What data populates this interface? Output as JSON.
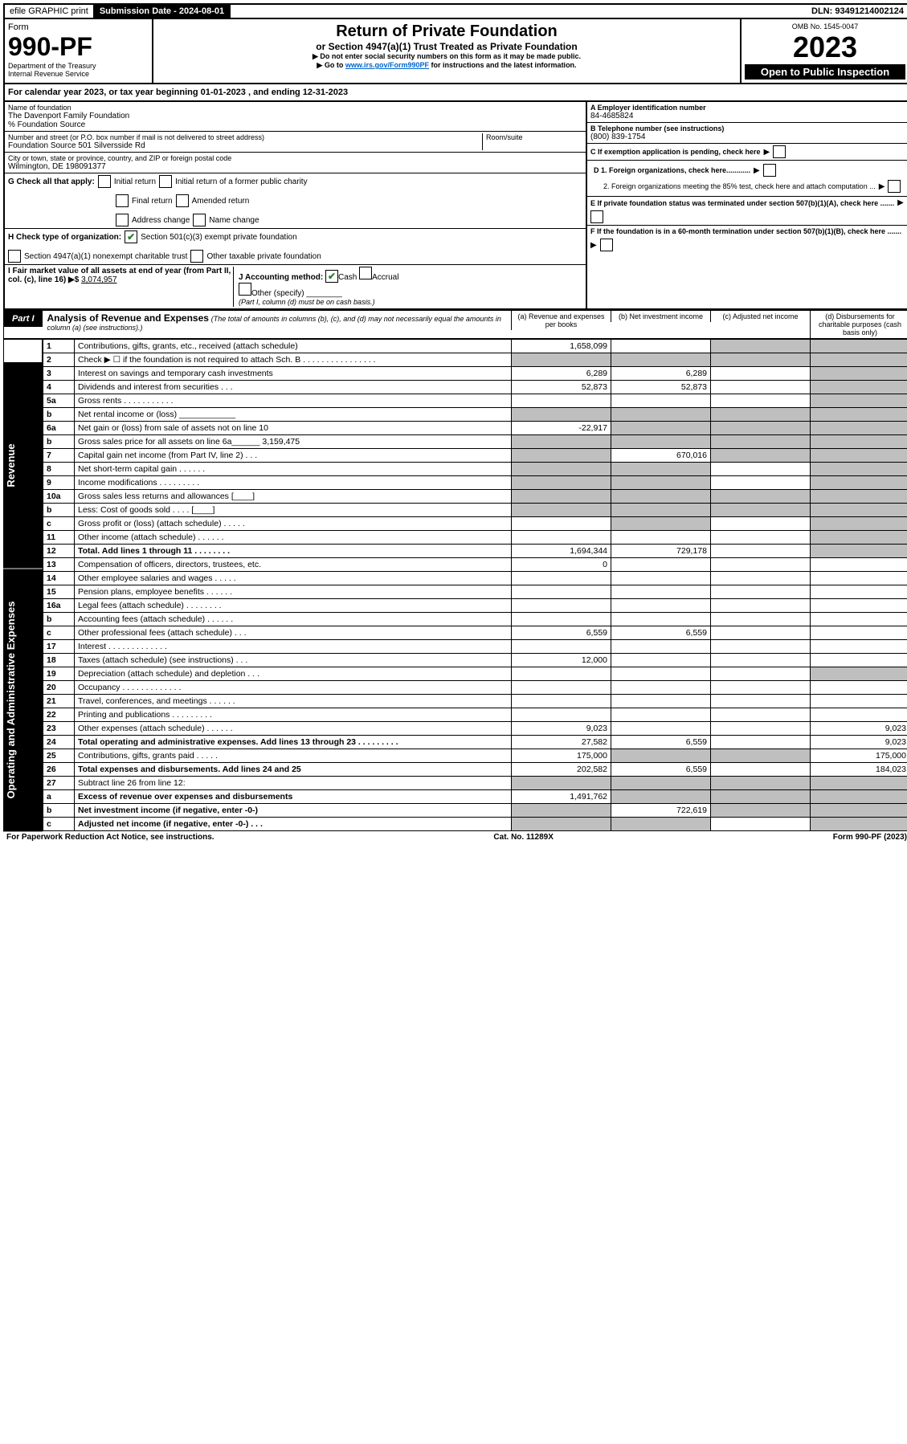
{
  "top": {
    "efile": "efile GRAPHIC print",
    "submission_label": "Submission Date - 2024-08-01",
    "dln": "DLN: 93491214002124"
  },
  "header": {
    "form_word": "Form",
    "form_num": "990-PF",
    "dept": "Department of the Treasury",
    "irs": "Internal Revenue Service",
    "title": "Return of Private Foundation",
    "subtitle": "or Section 4947(a)(1) Trust Treated as Private Foundation",
    "note1": "▶ Do not enter social security numbers on this form as it may be made public.",
    "note2_pre": "▶ Go to ",
    "note2_link": "www.irs.gov/Form990PF",
    "note2_post": " for instructions and the latest information.",
    "omb": "OMB No. 1545-0047",
    "year": "2023",
    "open": "Open to Public Inspection"
  },
  "cal_year": "For calendar year 2023, or tax year beginning 01-01-2023                         , and ending 12-31-2023",
  "entity": {
    "name_label": "Name of foundation",
    "name": "The Davenport Family Foundation",
    "care_of": "% Foundation Source",
    "addr_label": "Number and street (or P.O. box number if mail is not delivered to street address)",
    "addr": "Foundation Source 501 Silversside Rd",
    "room_label": "Room/suite",
    "city_label": "City or town, state or province, country, and ZIP or foreign postal code",
    "city": "Wilmington, DE  198091377",
    "a_label": "A Employer identification number",
    "a_val": "84-4685824",
    "b_label": "B Telephone number (see instructions)",
    "b_val": "(800) 839-1754",
    "c_label": "C If exemption application is pending, check here",
    "d1_label": "D 1. Foreign organizations, check here............",
    "d2_label": "2. Foreign organizations meeting the 85% test, check here and attach computation ...",
    "e_label": "E  If private foundation status was terminated under section 507(b)(1)(A), check here .......",
    "f_label": "F  If the foundation is in a 60-month termination under section 507(b)(1)(B), check here .......",
    "g_label": "G Check all that apply:",
    "g_opts": [
      "Initial return",
      "Initial return of a former public charity",
      "Final return",
      "Amended return",
      "Address change",
      "Name change"
    ],
    "h_label": "H Check type of organization:",
    "h_opt1": "Section 501(c)(3) exempt private foundation",
    "h_opt2": "Section 4947(a)(1) nonexempt charitable trust",
    "h_opt3": "Other taxable private foundation",
    "i_label": "I Fair market value of all assets at end of year (from Part II, col. (c), line 16) ▶$",
    "i_val": "3,074,957",
    "j_label": "J Accounting method:",
    "j_opt1": "Cash",
    "j_opt2": "Accrual",
    "j_opt3": "Other (specify)",
    "j_note": "(Part I, column (d) must be on cash basis.)"
  },
  "part1": {
    "label": "Part I",
    "title": "Analysis of Revenue and Expenses",
    "title_note": "(The total of amounts in columns (b), (c), and (d) may not necessarily equal the amounts in column (a) (see instructions).)",
    "col_a": "(a) Revenue and expenses per books",
    "col_b": "(b) Net investment income",
    "col_c": "(c) Adjusted net income",
    "col_d": "(d) Disbursements for charitable purposes (cash basis only)"
  },
  "side_revenue": "Revenue",
  "side_expenses": "Operating and Administrative Expenses",
  "rows": [
    {
      "n": "1",
      "d": "Contributions, gifts, grants, etc., received (attach schedule)",
      "a": "1,658,099",
      "b": "",
      "c": "grey",
      "dcol": "grey"
    },
    {
      "n": "2",
      "d": "Check ▶ ☐ if the foundation is not required to attach Sch. B    .  .  .  .  .  .  .  .  .  .  .  .  .  .  .  .",
      "a": "grey",
      "b": "grey",
      "c": "grey",
      "dcol": "grey"
    },
    {
      "n": "3",
      "d": "Interest on savings and temporary cash investments",
      "a": "6,289",
      "b": "6,289",
      "c": "",
      "dcol": "grey"
    },
    {
      "n": "4",
      "d": "Dividends and interest from securities    .   .   .",
      "a": "52,873",
      "b": "52,873",
      "c": "",
      "dcol": "grey"
    },
    {
      "n": "5a",
      "d": "Gross rents   .   .   .   .   .   .   .   .   .   .   .",
      "a": "",
      "b": "",
      "c": "",
      "dcol": "grey"
    },
    {
      "n": "b",
      "d": "Net rental income or (loss)  ____________",
      "a": "grey",
      "b": "grey",
      "c": "grey",
      "dcol": "grey"
    },
    {
      "n": "6a",
      "d": "Net gain or (loss) from sale of assets not on line 10",
      "a": "-22,917",
      "b": "grey",
      "c": "grey",
      "dcol": "grey"
    },
    {
      "n": "b",
      "d": "Gross sales price for all assets on line 6a______ 3,159,475",
      "a": "grey",
      "b": "grey",
      "c": "grey",
      "dcol": "grey"
    },
    {
      "n": "7",
      "d": "Capital gain net income (from Part IV, line 2)   .   .   .",
      "a": "grey",
      "b": "670,016",
      "c": "grey",
      "dcol": "grey"
    },
    {
      "n": "8",
      "d": "Net short-term capital gain   .   .   .   .   .   .",
      "a": "grey",
      "b": "grey",
      "c": "",
      "dcol": "grey"
    },
    {
      "n": "9",
      "d": "Income modifications  .   .   .   .   .   .   .   .   .",
      "a": "grey",
      "b": "grey",
      "c": "",
      "dcol": "grey"
    },
    {
      "n": "10a",
      "d": "Gross sales less returns and allowances  [____]",
      "a": "grey",
      "b": "grey",
      "c": "grey",
      "dcol": "grey"
    },
    {
      "n": "b",
      "d": "Less: Cost of goods sold    .   .   .   .          [____]",
      "a": "grey",
      "b": "grey",
      "c": "grey",
      "dcol": "grey"
    },
    {
      "n": "c",
      "d": "Gross profit or (loss) (attach schedule)   .   .   .   .   .",
      "a": "",
      "b": "grey",
      "c": "",
      "dcol": "grey"
    },
    {
      "n": "11",
      "d": "Other income (attach schedule)   .   .   .   .   .   .",
      "a": "",
      "b": "",
      "c": "",
      "dcol": "grey"
    },
    {
      "n": "12",
      "d": "Total. Add lines 1 through 11   .   .   .   .   .   .   .   .",
      "a": "1,694,344",
      "b": "729,178",
      "c": "",
      "dcol": "grey",
      "bold": true
    },
    {
      "n": "13",
      "d": "Compensation of officers, directors, trustees, etc.",
      "a": "0",
      "b": "",
      "c": "",
      "dcol": ""
    },
    {
      "n": "14",
      "d": "Other employee salaries and wages   .   .   .   .   .",
      "a": "",
      "b": "",
      "c": "",
      "dcol": ""
    },
    {
      "n": "15",
      "d": "Pension plans, employee benefits  .   .   .   .   .   .",
      "a": "",
      "b": "",
      "c": "",
      "dcol": ""
    },
    {
      "n": "16a",
      "d": "Legal fees (attach schedule)  .   .   .   .   .   .   .   .",
      "a": "",
      "b": "",
      "c": "",
      "dcol": ""
    },
    {
      "n": "b",
      "d": "Accounting fees (attach schedule)  .   .   .   .   .   .",
      "a": "",
      "b": "",
      "c": "",
      "dcol": ""
    },
    {
      "n": "c",
      "d": "Other professional fees (attach schedule)    .   .   .",
      "a": "6,559",
      "b": "6,559",
      "c": "",
      "dcol": ""
    },
    {
      "n": "17",
      "d": "Interest  .   .   .   .   .   .   .   .   .   .   .   .   .",
      "a": "",
      "b": "",
      "c": "",
      "dcol": ""
    },
    {
      "n": "18",
      "d": "Taxes (attach schedule) (see instructions)    .   .   .",
      "a": "12,000",
      "b": "",
      "c": "",
      "dcol": ""
    },
    {
      "n": "19",
      "d": "Depreciation (attach schedule) and depletion    .   .   .",
      "a": "",
      "b": "",
      "c": "",
      "dcol": "grey"
    },
    {
      "n": "20",
      "d": "Occupancy  .   .   .   .   .   .   .   .   .   .   .   .   .",
      "a": "",
      "b": "",
      "c": "",
      "dcol": ""
    },
    {
      "n": "21",
      "d": "Travel, conferences, and meetings  .   .   .   .   .   .",
      "a": "",
      "b": "",
      "c": "",
      "dcol": ""
    },
    {
      "n": "22",
      "d": "Printing and publications  .   .   .   .   .   .   .   .   .",
      "a": "",
      "b": "",
      "c": "",
      "dcol": ""
    },
    {
      "n": "23",
      "d": "Other expenses (attach schedule)  .   .   .   .   .   .",
      "a": "9,023",
      "b": "",
      "c": "",
      "dcol": "9,023"
    },
    {
      "n": "24",
      "d": "Total operating and administrative expenses. Add lines 13 through 23   .   .   .   .   .   .   .   .   .",
      "a": "27,582",
      "b": "6,559",
      "c": "",
      "dcol": "9,023",
      "bold": true
    },
    {
      "n": "25",
      "d": "Contributions, gifts, grants paid    .   .   .   .   .",
      "a": "175,000",
      "b": "grey",
      "c": "grey",
      "dcol": "175,000"
    },
    {
      "n": "26",
      "d": "Total expenses and disbursements. Add lines 24 and 25",
      "a": "202,582",
      "b": "6,559",
      "c": "",
      "dcol": "184,023",
      "bold": true
    },
    {
      "n": "27",
      "d": "Subtract line 26 from line 12:",
      "a": "grey",
      "b": "grey",
      "c": "grey",
      "dcol": "grey"
    },
    {
      "n": "a",
      "d": "Excess of revenue over expenses and disbursements",
      "a": "1,491,762",
      "b": "grey",
      "c": "grey",
      "dcol": "grey",
      "bold": true
    },
    {
      "n": "b",
      "d": "Net investment income (if negative, enter -0-)",
      "a": "grey",
      "b": "722,619",
      "c": "grey",
      "dcol": "grey",
      "bold": true
    },
    {
      "n": "c",
      "d": "Adjusted net income (if negative, enter -0-)   .   .   .",
      "a": "grey",
      "b": "grey",
      "c": "",
      "dcol": "grey",
      "bold": true
    }
  ],
  "footer": {
    "left": "For Paperwork Reduction Act Notice, see instructions.",
    "mid": "Cat. No. 11289X",
    "right": "Form 990-PF (2023)"
  }
}
